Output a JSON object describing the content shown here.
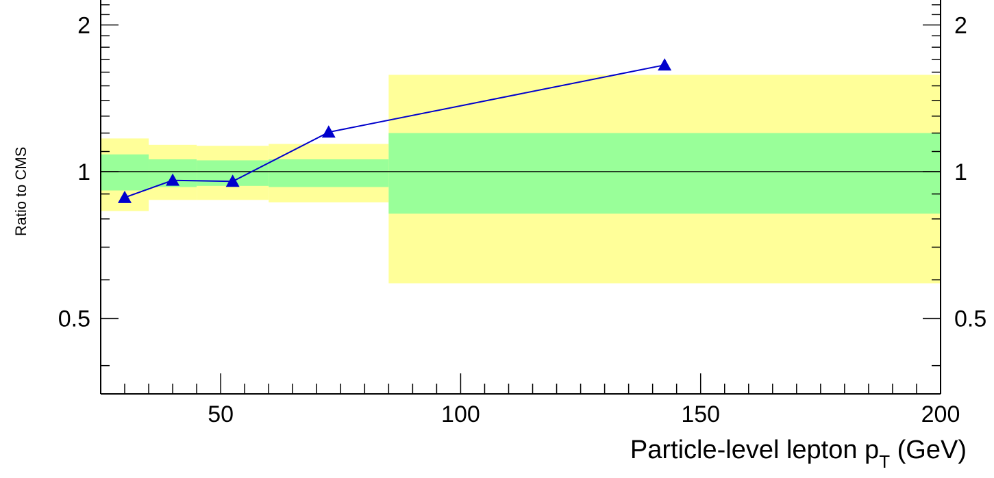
{
  "chart_data": {
    "type": "line",
    "title": "",
    "xlabel": {
      "main": "Particle-level lepton p",
      "sub": "T",
      "unit": " (GeV)"
    },
    "ylabel": "Ratio to CMS",
    "xlim": [
      25,
      200
    ],
    "ylim": [
      0.35,
      2.25
    ],
    "y_scale": "log",
    "x_ticks": [
      "50",
      "100",
      "150",
      "200"
    ],
    "y_ticks": [
      "0.5",
      "1",
      "2"
    ],
    "right_y_ticks": [
      "0.5",
      "1",
      "2"
    ],
    "reference_line": 1,
    "colors": {
      "outer_band": "#ffff99",
      "inner_band": "#99ff99",
      "series": "#0000cc",
      "frame": "#000000"
    },
    "bins": [
      {
        "x_low": 25,
        "x_high": 35,
        "inner": [
          0.915,
          1.085
        ],
        "outer": [
          0.83,
          1.17
        ]
      },
      {
        "x_low": 35,
        "x_high": 45,
        "inner": [
          0.93,
          1.06
        ],
        "outer": [
          0.875,
          1.135
        ]
      },
      {
        "x_low": 45,
        "x_high": 60,
        "inner": [
          0.935,
          1.055
        ],
        "outer": [
          0.875,
          1.13
        ]
      },
      {
        "x_low": 60,
        "x_high": 85,
        "inner": [
          0.93,
          1.06
        ],
        "outer": [
          0.865,
          1.14
        ]
      },
      {
        "x_low": 85,
        "x_high": 200,
        "inner": [
          0.82,
          1.2
        ],
        "outer": [
          0.59,
          1.58
        ]
      }
    ],
    "series": [
      {
        "x": [
          30,
          40,
          52.5,
          72.5,
          142.5
        ],
        "y": [
          0.885,
          0.96,
          0.955,
          1.205,
          1.655
        ]
      }
    ]
  }
}
